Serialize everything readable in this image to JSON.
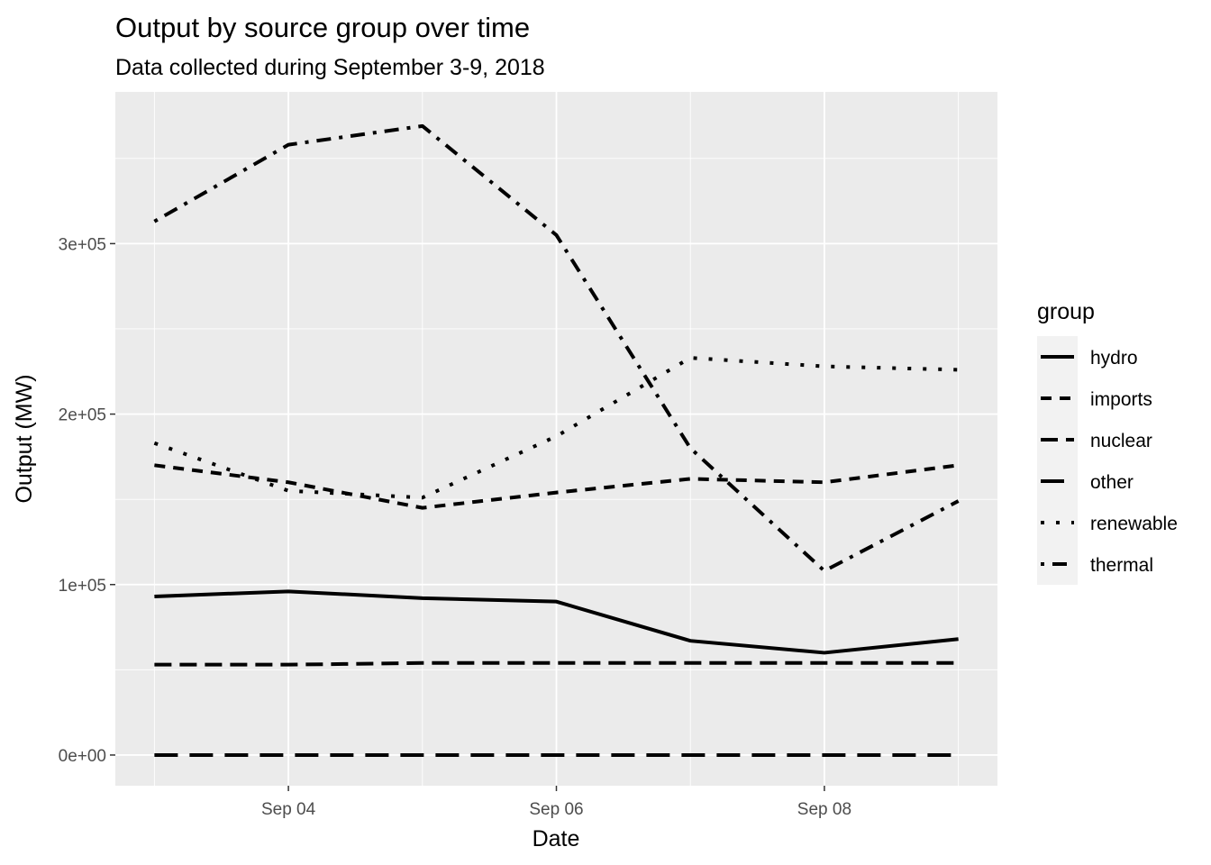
{
  "chart_data": {
    "type": "line",
    "title": "Output by source group over time",
    "subtitle": "Data collected during September 3-9, 2018",
    "xlabel": "Date",
    "ylabel": "Output (MW)",
    "x": [
      "2018-09-03",
      "2018-09-04",
      "2018-09-05",
      "2018-09-06",
      "2018-09-07",
      "2018-09-08",
      "2018-09-09"
    ],
    "x_tick_values": [
      "2018-09-04",
      "2018-09-06",
      "2018-09-08"
    ],
    "x_tick_labels": [
      "Sep 04",
      "Sep 06",
      "Sep 08"
    ],
    "y_tick_values": [
      0,
      100000,
      200000,
      300000
    ],
    "y_tick_labels": [
      "0e+00",
      "1e+05",
      "2e+05",
      "3e+05"
    ],
    "xlim": [
      "2018-09-02 17:00",
      "2018-09-09 07:00"
    ],
    "ylim": [
      -18000,
      389000
    ],
    "grid": true,
    "legend_title": "group",
    "legend_position": "right",
    "series": [
      {
        "name": "hydro",
        "linetype": "solid",
        "values": [
          93000,
          96000,
          92000,
          90000,
          67000,
          60000,
          68000
        ]
      },
      {
        "name": "imports",
        "linetype": "dashed",
        "values": [
          170000,
          160000,
          145000,
          154000,
          162000,
          160000,
          170000
        ]
      },
      {
        "name": "nuclear",
        "linetype": "longdash-short",
        "values": [
          53000,
          53000,
          54000,
          54000,
          54000,
          54000,
          54000
        ]
      },
      {
        "name": "other",
        "linetype": "longdash",
        "values": [
          0,
          0,
          0,
          0,
          0,
          0,
          0
        ]
      },
      {
        "name": "renewable",
        "linetype": "dotted",
        "values": [
          183000,
          155000,
          151000,
          187000,
          233000,
          228000,
          226000
        ]
      },
      {
        "name": "thermal",
        "linetype": "dotdash",
        "values": [
          313000,
          358000,
          369000,
          305000,
          180000,
          108000,
          149000
        ]
      }
    ]
  }
}
